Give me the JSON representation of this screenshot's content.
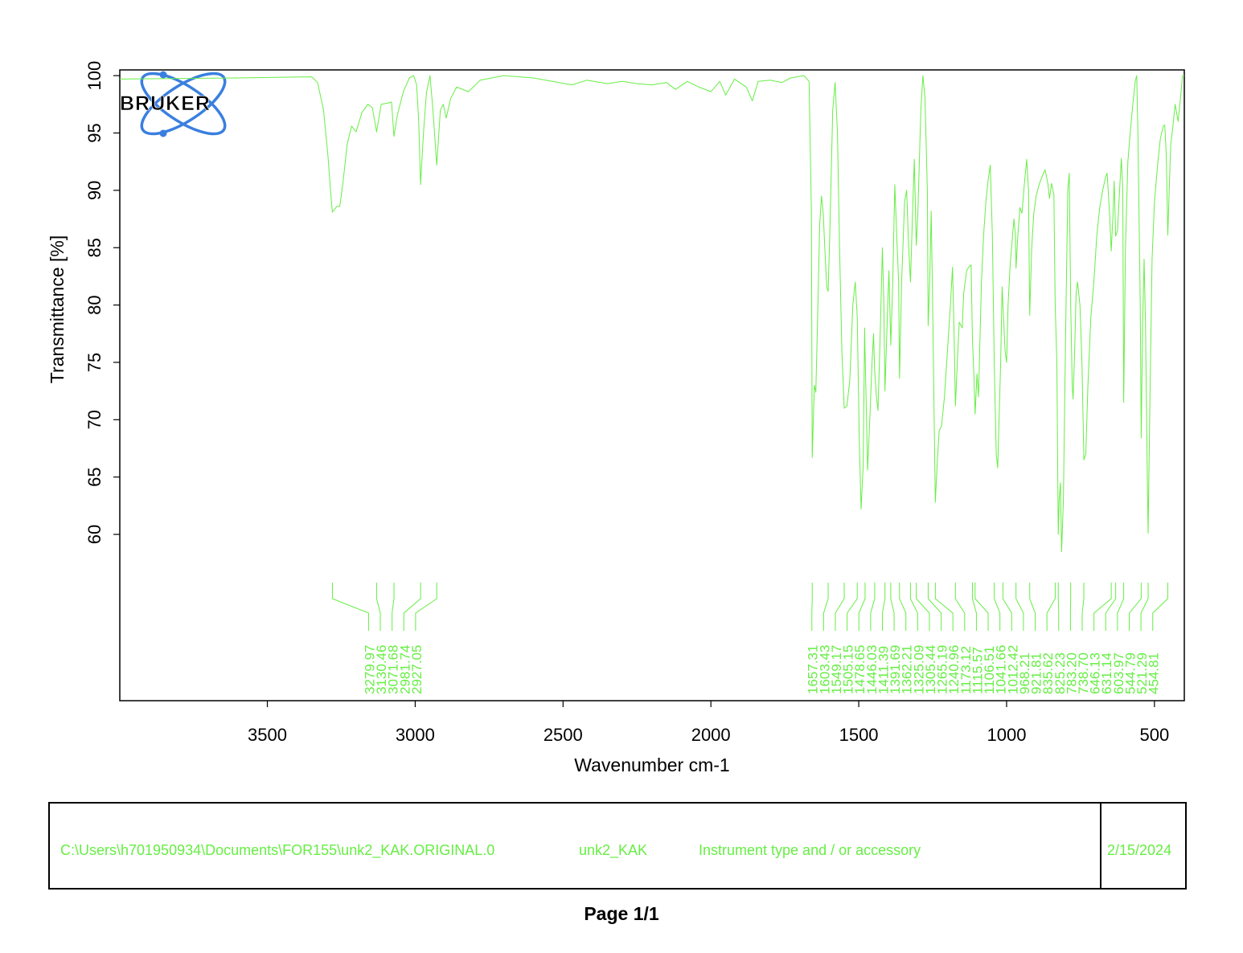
{
  "chart_data": {
    "type": "line",
    "xlabel": "Wavenumber cm-1",
    "ylabel": "Transmittance [%]",
    "xlim": [
      3999,
      399
    ],
    "ylim": [
      45.5,
      100.5
    ],
    "x_ticks": [
      3500,
      3000,
      2500,
      2000,
      1500,
      1000,
      500
    ],
    "y_ticks": [
      60,
      65,
      70,
      75,
      80,
      85,
      90,
      95,
      100
    ],
    "line_color": "#66ee44",
    "grid": false,
    "series": [
      {
        "points": [
          [
            3999,
            99.7
          ],
          [
            3600,
            99.8
          ],
          [
            3350,
            99.9
          ],
          [
            3330,
            99.4
          ],
          [
            3310,
            97
          ],
          [
            3295,
            93
          ],
          [
            3285,
            89.5
          ],
          [
            3279.97,
            88.1
          ],
          [
            3265,
            88.6
          ],
          [
            3255,
            88.6
          ],
          [
            3245,
            90.5
          ],
          [
            3230,
            94
          ],
          [
            3215,
            95.6
          ],
          [
            3200,
            95.1
          ],
          [
            3180,
            96.8
          ],
          [
            3160,
            97.5
          ],
          [
            3145,
            97.2
          ],
          [
            3130.46,
            95.1
          ],
          [
            3115,
            97.5
          ],
          [
            3095,
            97.6
          ],
          [
            3080,
            97.7
          ],
          [
            3071.68,
            94.7
          ],
          [
            3060,
            96.6
          ],
          [
            3040,
            98.6
          ],
          [
            3020,
            99.8
          ],
          [
            3005,
            100
          ],
          [
            2995,
            99.2
          ],
          [
            2988,
            96
          ],
          [
            2981.74,
            90.5
          ],
          [
            2972,
            95
          ],
          [
            2962,
            98.5
          ],
          [
            2950,
            100
          ],
          [
            2940,
            97
          ],
          [
            2927.05,
            92.2
          ],
          [
            2915,
            97
          ],
          [
            2905,
            97.5
          ],
          [
            2895,
            96.3
          ],
          [
            2880,
            98
          ],
          [
            2860,
            99
          ],
          [
            2820,
            98.6
          ],
          [
            2780,
            99.6
          ],
          [
            2700,
            100
          ],
          [
            2600,
            99.8
          ],
          [
            2470,
            99.2
          ],
          [
            2420,
            99.6
          ],
          [
            2350,
            99.3
          ],
          [
            2300,
            99.5
          ],
          [
            2250,
            99.3
          ],
          [
            2200,
            99.2
          ],
          [
            2150,
            99.4
          ],
          [
            2120,
            98.8
          ],
          [
            2080,
            99.5
          ],
          [
            2040,
            99.0
          ],
          [
            2000,
            98.6
          ],
          [
            1970,
            99.5
          ],
          [
            1950,
            98.3
          ],
          [
            1920,
            99.7
          ],
          [
            1880,
            99.0
          ],
          [
            1860,
            97.8
          ],
          [
            1840,
            99.5
          ],
          [
            1800,
            99.6
          ],
          [
            1760,
            99.4
          ],
          [
            1730,
            99.8
          ],
          [
            1685,
            100.0
          ],
          [
            1668,
            99.5
          ],
          [
            1660,
            88
          ],
          [
            1657.31,
            66.7
          ],
          [
            1650,
            73
          ],
          [
            1645,
            72.4
          ],
          [
            1638,
            80
          ],
          [
            1632,
            87
          ],
          [
            1626,
            89.5
          ],
          [
            1620,
            88
          ],
          [
            1613,
            84
          ],
          [
            1608,
            81.5
          ],
          [
            1603.43,
            81.2
          ],
          [
            1598,
            86
          ],
          [
            1588,
            97
          ],
          [
            1580,
            99.4
          ],
          [
            1572,
            95
          ],
          [
            1565,
            85
          ],
          [
            1557,
            76
          ],
          [
            1549.17,
            71
          ],
          [
            1540,
            71.2
          ],
          [
            1530,
            73.5
          ],
          [
            1520,
            80
          ],
          [
            1512,
            82
          ],
          [
            1505.15,
            79
          ],
          [
            1498,
            68
          ],
          [
            1492,
            62.2
          ],
          [
            1485,
            66
          ],
          [
            1480,
            78
          ],
          [
            1478.65,
            76
          ],
          [
            1470,
            65.6
          ],
          [
            1462,
            70.5
          ],
          [
            1455,
            75
          ],
          [
            1450,
            77.5
          ],
          [
            1446.03,
            74.2
          ],
          [
            1440,
            72
          ],
          [
            1435,
            70.8
          ],
          [
            1428,
            77
          ],
          [
            1420,
            85
          ],
          [
            1415,
            80
          ],
          [
            1411.39,
            72.5
          ],
          [
            1402,
            80
          ],
          [
            1398,
            83
          ],
          [
            1391.69,
            76.5
          ],
          [
            1385,
            82
          ],
          [
            1378,
            90.5
          ],
          [
            1370,
            85
          ],
          [
            1365,
            82
          ],
          [
            1362.21,
            73.6
          ],
          [
            1355,
            82
          ],
          [
            1345,
            89
          ],
          [
            1338,
            90
          ],
          [
            1332,
            85.5
          ],
          [
            1325.09,
            82
          ],
          [
            1318,
            88
          ],
          [
            1312,
            92.7
          ],
          [
            1305.44,
            85.2
          ],
          [
            1300,
            88
          ],
          [
            1290,
            97
          ],
          [
            1283,
            100
          ],
          [
            1276,
            98
          ],
          [
            1268,
            90
          ],
          [
            1265.19,
            78.2
          ],
          [
            1260,
            82
          ],
          [
            1255,
            88.2
          ],
          [
            1250,
            80
          ],
          [
            1245,
            70
          ],
          [
            1240.96,
            62.8
          ],
          [
            1235,
            66
          ],
          [
            1228,
            69
          ],
          [
            1220,
            69.5
          ],
          [
            1210,
            72
          ],
          [
            1200,
            76
          ],
          [
            1190,
            80
          ],
          [
            1183,
            83.3
          ],
          [
            1178,
            78
          ],
          [
            1173.12,
            71.2
          ],
          [
            1165,
            76
          ],
          [
            1160,
            78.5
          ],
          [
            1150,
            78
          ],
          [
            1145,
            81
          ],
          [
            1135,
            83
          ],
          [
            1128,
            83.3
          ],
          [
            1120,
            83.5
          ],
          [
            1115.57,
            77
          ],
          [
            1110,
            73.5
          ],
          [
            1106.51,
            70.5
          ],
          [
            1100,
            74
          ],
          [
            1095,
            72
          ],
          [
            1085,
            82
          ],
          [
            1078,
            86
          ],
          [
            1070,
            89
          ],
          [
            1062,
            91
          ],
          [
            1055,
            92.2
          ],
          [
            1048,
            86
          ],
          [
            1041.66,
            75
          ],
          [
            1035,
            67
          ],
          [
            1030,
            65.8
          ],
          [
            1020,
            75
          ],
          [
            1015,
            81.6
          ],
          [
            1012.42,
            80
          ],
          [
            1005,
            76
          ],
          [
            1000,
            75
          ],
          [
            995,
            80
          ],
          [
            988,
            83.5
          ],
          [
            980,
            86
          ],
          [
            975,
            87.5
          ],
          [
            970,
            86
          ],
          [
            968.21,
            83.2
          ],
          [
            962,
            86
          ],
          [
            955,
            88.5
          ],
          [
            948,
            88
          ],
          [
            940,
            90.5
          ],
          [
            932,
            92.7
          ],
          [
            926,
            90
          ],
          [
            921.81,
            79.1
          ],
          [
            915,
            85
          ],
          [
            908,
            88
          ],
          [
            900,
            89.5
          ],
          [
            890,
            90.5
          ],
          [
            880,
            91.2
          ],
          [
            870,
            91.8
          ],
          [
            860,
            90.5
          ],
          [
            855,
            89.3
          ],
          [
            848,
            90.6
          ],
          [
            840,
            89.6
          ],
          [
            835.62,
            80
          ],
          [
            830,
            75
          ],
          [
            825.23,
            60
          ],
          [
            822,
            63
          ],
          [
            818,
            64.5
          ],
          [
            814,
            58.5
          ],
          [
            808,
            63
          ],
          [
            800,
            78
          ],
          [
            793,
            90
          ],
          [
            788,
            91.5
          ],
          [
            783.2,
            80
          ],
          [
            778,
            73
          ],
          [
            775,
            71.8
          ],
          [
            770,
            76
          ],
          [
            765,
            81
          ],
          [
            760,
            82
          ],
          [
            752,
            80
          ],
          [
            745,
            75
          ],
          [
            738.7,
            66.5
          ],
          [
            732,
            67
          ],
          [
            725,
            73
          ],
          [
            715,
            79
          ],
          [
            705,
            82
          ],
          [
            695,
            86
          ],
          [
            685,
            88.5
          ],
          [
            675,
            90
          ],
          [
            665,
            91.2
          ],
          [
            660,
            91.5
          ],
          [
            652,
            88
          ],
          [
            646.13,
            84.7
          ],
          [
            640,
            88
          ],
          [
            636,
            90.8
          ],
          [
            631.14,
            86
          ],
          [
            625,
            86.5
          ],
          [
            618,
            90
          ],
          [
            612,
            92.8
          ],
          [
            607,
            90
          ],
          [
            603.97,
            71.5
          ],
          [
            598,
            85
          ],
          [
            590,
            92.5
          ],
          [
            582,
            95
          ],
          [
            575,
            97
          ],
          [
            565,
            99.5
          ],
          [
            560,
            100
          ],
          [
            556,
            95
          ],
          [
            548,
            80
          ],
          [
            544.79,
            68.4
          ],
          [
            540,
            78
          ],
          [
            535,
            84
          ],
          [
            530,
            78
          ],
          [
            524,
            65
          ],
          [
            521.29,
            60.1
          ],
          [
            515,
            72
          ],
          [
            508,
            84
          ],
          [
            500,
            89
          ],
          [
            490,
            92
          ],
          [
            480,
            94.5
          ],
          [
            470,
            95.6
          ],
          [
            465,
            95.7
          ],
          [
            460,
            93
          ],
          [
            454.81,
            86.1
          ],
          [
            450,
            90
          ],
          [
            445,
            94
          ],
          [
            438,
            95.5
          ],
          [
            430,
            97.5
          ],
          [
            420,
            96
          ],
          [
            412,
            98
          ],
          [
            405,
            100
          ],
          [
            399,
            100
          ]
        ]
      }
    ],
    "peak_labels": [
      "3279.97",
      "3130.46",
      "3071.68",
      "2981.74",
      "2927.05",
      "1657.31",
      "1603.43",
      "1549.17",
      "1505.15",
      "1478.65",
      "1446.03",
      "1411.39",
      "1391.69",
      "1362.21",
      "1325.09",
      "1305.44",
      "1265.19",
      "1240.96",
      "1173.12",
      "1115.57",
      "1106.51",
      "1041.66",
      "1012.42",
      "968.21",
      "921.81",
      "835.62",
      "825.23",
      "783.20",
      "738.70",
      "646.13",
      "631.14",
      "603.97",
      "544.79",
      "521.29",
      "454.81"
    ]
  },
  "logo": {
    "text": "BRUKER",
    "color": "#3a7fe0"
  },
  "footer": {
    "path": "C:\\Users\\h701950934\\Documents\\FOR155\\unk2_KAK.ORIGINAL.0",
    "sample": "unk2_KAK",
    "instrument": "Instrument type and / or accessory",
    "date": "2/15/2024"
  },
  "page_label": "Page 1/1"
}
